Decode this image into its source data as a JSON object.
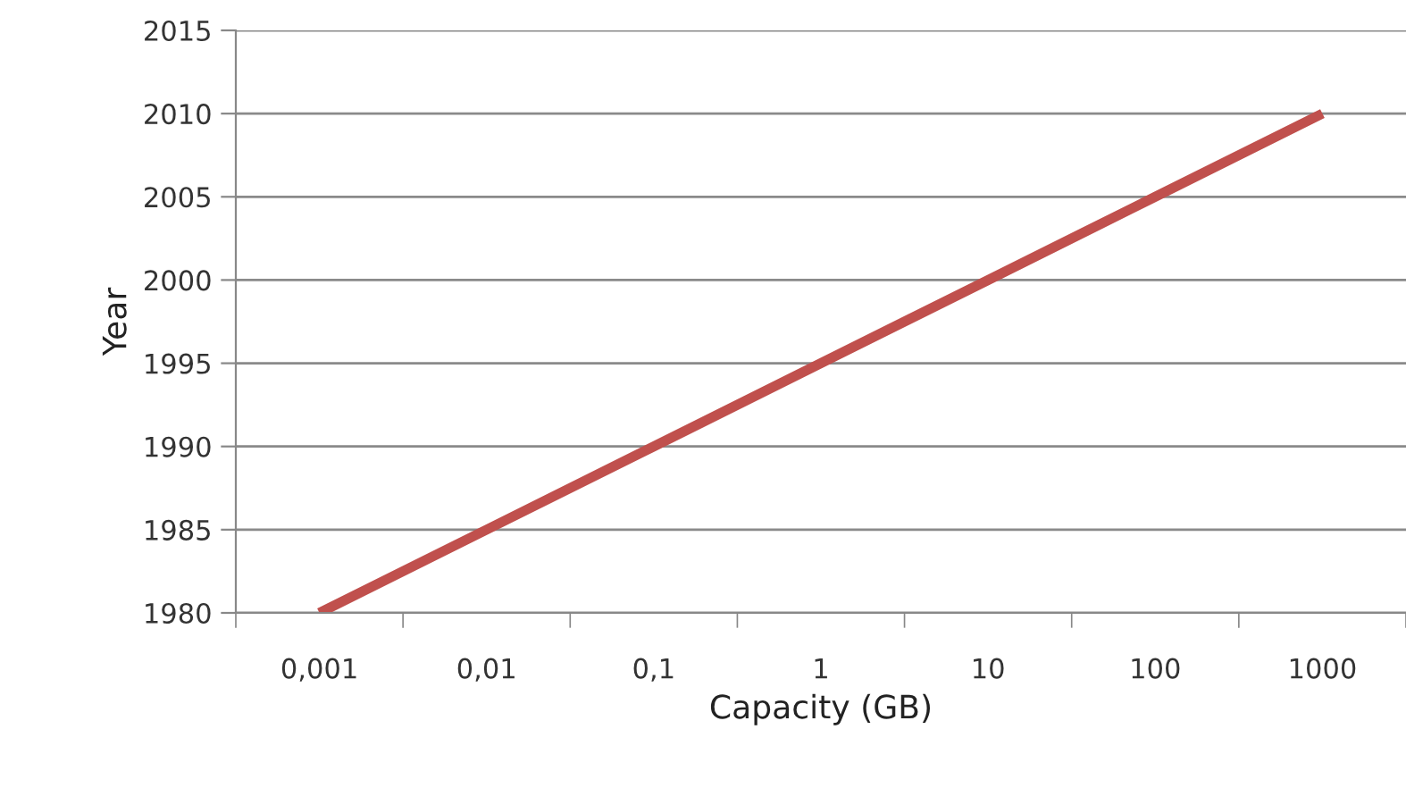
{
  "chart_data": {
    "type": "line",
    "xlabel": "Capacity (GB)",
    "ylabel": "Year",
    "categories": [
      "0,001",
      "0,01",
      "0,1",
      "1",
      "10",
      "100",
      "1000"
    ],
    "series": [
      {
        "color": "#c0504d",
        "values": [
          1980,
          1985,
          1990,
          1995,
          2000,
          2005,
          2010
        ]
      }
    ],
    "ylim": [
      1980,
      2015
    ],
    "yticks": [
      1980,
      1985,
      1990,
      1995,
      2000,
      2005,
      2010,
      2015
    ],
    "grid": "y",
    "legend": false,
    "marker": "none",
    "line_style": "solid"
  }
}
